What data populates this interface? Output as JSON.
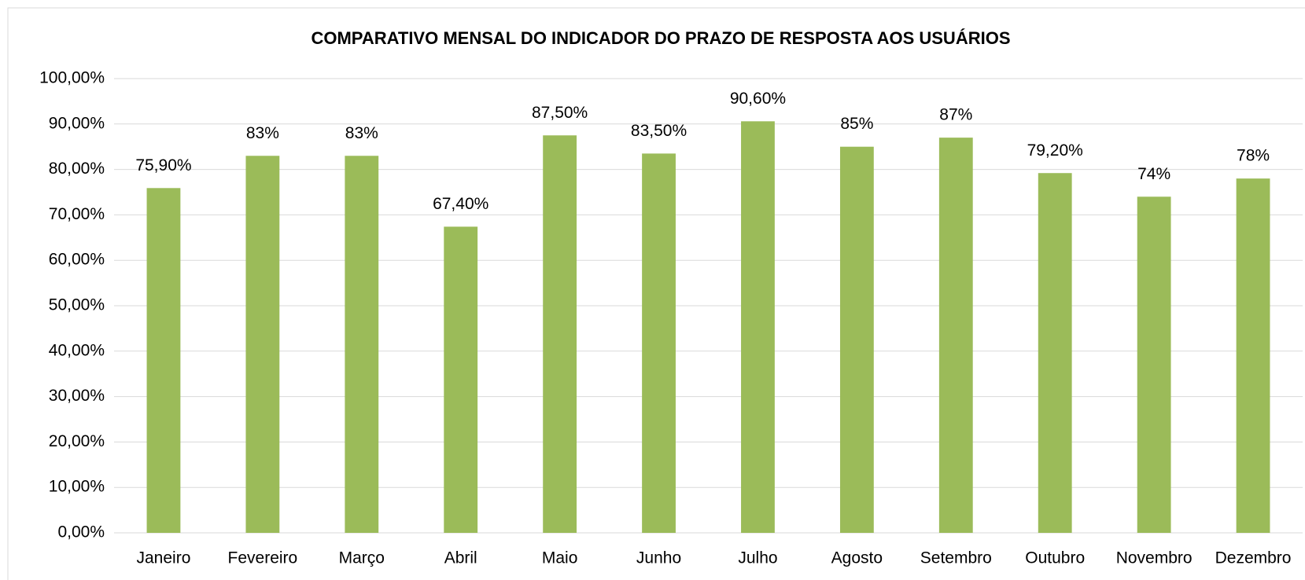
{
  "chart_data": {
    "type": "bar",
    "title": "COMPARATIVO MENSAL DO INDICADOR DO PRAZO DE RESPOSTA AOS USUÁRIOS",
    "categories": [
      "Janeiro",
      "Fevereiro",
      "Março",
      "Abril",
      "Maio",
      "Junho",
      "Julho",
      "Agosto",
      "Setembro",
      "Outubro",
      "Novembro",
      "Dezembro"
    ],
    "values": [
      75.9,
      83,
      83,
      67.4,
      87.5,
      83.5,
      90.6,
      85,
      87,
      79.2,
      74,
      78
    ],
    "value_labels": [
      "75,90%",
      "83%",
      "83%",
      "67,40%",
      "87,50%",
      "83,50%",
      "90,60%",
      "85%",
      "87%",
      "79,20%",
      "74%",
      "78%"
    ],
    "color": "#9bbb59",
    "ylim": [
      0,
      100
    ],
    "yticks": [
      {
        "value": 0,
        "label": "0,00%"
      },
      {
        "value": 10,
        "label": "10,00%"
      },
      {
        "value": 20,
        "label": "20,00%"
      },
      {
        "value": 30,
        "label": "30,00%"
      },
      {
        "value": 40,
        "label": "40,00%"
      },
      {
        "value": 50,
        "label": "50,00%"
      },
      {
        "value": 60,
        "label": "60,00%"
      },
      {
        "value": 70,
        "label": "70,00%"
      },
      {
        "value": 80,
        "label": "80,00%"
      },
      {
        "value": 90,
        "label": "90,00%"
      },
      {
        "value": 100,
        "label": "100,00%"
      }
    ],
    "grid": true
  }
}
